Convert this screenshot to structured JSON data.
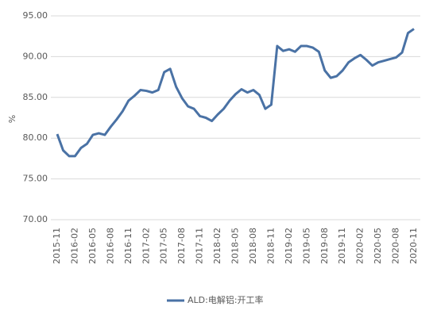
{
  "chart_data": {
    "type": "line",
    "y_label": "%",
    "categories": [
      "2015-11",
      null,
      null,
      "2016-02",
      null,
      null,
      "2016-05",
      null,
      null,
      "2016-08",
      null,
      null,
      "2016-11",
      null,
      null,
      "2017-02",
      null,
      null,
      "2017-05",
      null,
      null,
      "2017-08",
      null,
      null,
      "2017-11",
      null,
      null,
      "2018-02",
      null,
      null,
      "2018-05",
      null,
      null,
      "2018-08",
      null,
      null,
      "2018-11",
      null,
      null,
      "2019-02",
      null,
      null,
      "2019-05",
      null,
      null,
      "2019-08",
      null,
      null,
      "2019-11",
      null,
      null,
      "2020-02",
      null,
      null,
      "2020-05",
      null,
      null,
      "2020-08",
      null,
      null,
      "2020-11"
    ],
    "series": [
      {
        "name": "ALD:电解铝:开工率",
        "color": "#4a72a5",
        "values": [
          80.5,
          78.5,
          77.8,
          77.8,
          78.8,
          79.3,
          80.4,
          80.6,
          80.4,
          81.4,
          82.3,
          83.3,
          84.6,
          85.2,
          85.9,
          85.8,
          85.6,
          85.9,
          88.1,
          88.5,
          86.3,
          84.9,
          83.9,
          83.6,
          82.7,
          82.5,
          82.1,
          82.9,
          83.6,
          84.6,
          85.4,
          86.0,
          85.6,
          85.9,
          85.3,
          83.6,
          84.1,
          91.3,
          90.7,
          90.9,
          90.6,
          91.3,
          91.3,
          91.1,
          90.6,
          88.3,
          87.4,
          87.6,
          88.3,
          89.3,
          89.8,
          90.2,
          89.6,
          88.9,
          89.3,
          89.5,
          89.7,
          89.9,
          90.5,
          92.9,
          93.4
        ]
      }
    ],
    "ylim": [
      70,
      95
    ],
    "yticks": [
      {
        "value": 70,
        "label": "70.00"
      },
      {
        "value": 75,
        "label": "75.00"
      },
      {
        "value": 80,
        "label": "80.00"
      },
      {
        "value": 85,
        "label": "85.00"
      },
      {
        "value": 90,
        "label": "90.00"
      },
      {
        "value": 95,
        "label": "95.00"
      }
    ],
    "grid": true,
    "legend": "bottom"
  }
}
